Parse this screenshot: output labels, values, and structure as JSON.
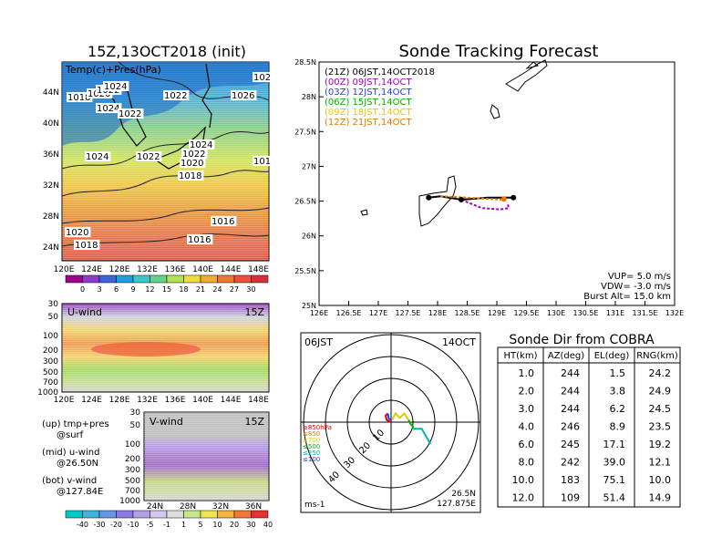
{
  "left": {
    "title": "15Z,13OCT2018 (init)",
    "map_label": "Temp(c)+Pres(hPa)",
    "lat_ticks": [
      "44N",
      "40N",
      "36N",
      "32N",
      "28N",
      "24N"
    ],
    "lon_ticks": [
      "120E",
      "124E",
      "128E",
      "132E",
      "136E",
      "140E",
      "144E",
      "148E"
    ],
    "pressure_labels": [
      "1018",
      "1020",
      "1022",
      "1024",
      "1022",
      "1024",
      "1022",
      "1026",
      "102",
      "1024",
      "1022",
      "1024",
      "1022",
      "1020",
      "1018",
      "101",
      "1016",
      "1020",
      "1018",
      "1016"
    ],
    "temp_colorbar": [
      "0",
      "3",
      "6",
      "9",
      "12",
      "15",
      "18",
      "21",
      "24",
      "27",
      "30"
    ],
    "uwind_label": "U-wind",
    "uwind_time": "15Z",
    "uwind_levels": [
      "30",
      "50",
      "100",
      "200",
      "300",
      "500",
      "700",
      "1000"
    ],
    "uwind_lon_ticks": [
      "120E",
      "124E",
      "128E",
      "132E",
      "136E",
      "140E",
      "144E",
      "148E"
    ],
    "vwind_label": "V-wind",
    "vwind_time": "15Z",
    "vwind_levels": [
      "30",
      "50",
      "100",
      "200",
      "300",
      "500",
      "700",
      "1000"
    ],
    "vwind_lat_ticks": [
      "24N",
      "28N",
      "32N",
      "36N"
    ],
    "legend_notes": [
      "(up) tmp+pres",
      "@surf",
      "(mid) u-wind",
      "@26.50N",
      "(bot) v-wind",
      "@127.84E"
    ],
    "wind_colorbar": [
      "-40",
      "-30",
      "-20",
      "-10",
      "-5",
      "-1",
      "1",
      "5",
      "10",
      "20",
      "30",
      "40"
    ]
  },
  "colors": {
    "launch_line": "#000000",
    "t00": "#a000c8",
    "t03": "#1e3cff",
    "t06": "#00b400",
    "t09": "#e6c800",
    "t12": "#e67800"
  },
  "chart_data": [
    {
      "type": "line",
      "title": "Sonde Tracking Forecast",
      "xlabel": "",
      "ylabel": "",
      "xlim": [
        126,
        132
      ],
      "ylim": [
        25,
        28.5
      ],
      "x_ticks": [
        "126E",
        "126.5E",
        "127E",
        "127.5E",
        "128E",
        "128.5E",
        "129E",
        "129.5E",
        "130E",
        "130.5E",
        "131E",
        "131.5E",
        "132E"
      ],
      "y_ticks": [
        "25N",
        "25.5N",
        "26N",
        "26.5N",
        "27N",
        "27.5N",
        "28N",
        "28.5N"
      ],
      "legend": [
        {
          "label": "(21Z)  06JST,14OCT2018",
          "color": "#000000"
        },
        {
          "label": "(00Z)  09JST,14OCT",
          "color": "#a000c8"
        },
        {
          "label": "(03Z)  12JST,14OCT",
          "color": "#1e3cff"
        },
        {
          "label": "(06Z)  15JST,14OCT",
          "color": "#00b400"
        },
        {
          "label": "(09Z)  18JST,14OCT",
          "color": "#e6c800"
        },
        {
          "label": "(12Z)  21JST,14OCT",
          "color": "#e67800"
        }
      ],
      "series": [
        {
          "name": "(21Z)  06JST,14OCT2018",
          "x": [
            129.28,
            128.85,
            128.4,
            128.05,
            127.85
          ],
          "y": [
            26.55,
            26.55,
            26.52,
            26.57,
            26.55
          ]
        },
        {
          "name": "(00Z)  09JST,14OCT",
          "x": [
            128.4,
            128.75,
            129.05,
            129.2,
            129.18
          ],
          "y": [
            26.52,
            26.4,
            26.38,
            26.4,
            26.48
          ]
        },
        {
          "name": "(12Z)  21JST,14OCT",
          "x": [
            128.05,
            128.5,
            128.9,
            129.12
          ],
          "y": [
            26.57,
            26.55,
            26.53,
            26.52
          ]
        }
      ],
      "points": [
        {
          "x": 129.28,
          "y": 26.55,
          "color": "#000000"
        },
        {
          "x": 128.4,
          "y": 26.52,
          "color": "#000000"
        },
        {
          "x": 127.85,
          "y": 26.55,
          "color": "#000000"
        },
        {
          "x": 129.12,
          "y": 26.53,
          "color": "#e67800"
        }
      ],
      "annotations": [
        "VUP=  5.0  m/s",
        "VDW= -3.0  m/s",
        "Burst Alt=  15.0  km"
      ]
    },
    {
      "type": "polar",
      "title": "",
      "top_left": "06JST",
      "top_right": "14OCT",
      "range_labels": [
        "10",
        "20",
        "30",
        "40"
      ],
      "level_legend": [
        {
          "label": "≥850hPa",
          "color": "#e60000"
        },
        {
          "label": "≤850",
          "color": "#e67800"
        },
        {
          "label": "≤700",
          "color": "#e6c800"
        },
        {
          "label": "≤500",
          "color": "#00b400"
        },
        {
          "label": "≤250",
          "color": "#00b4b4"
        },
        {
          "label": "≤100",
          "color": "#1e3cff"
        }
      ],
      "unit": "ms-1",
      "location_lat": "26.5N",
      "location_lon": "127.875E",
      "series": [
        {
          "color": "#e60000",
          "u": [
            0,
            -2,
            -2.5,
            -1.5
          ],
          "v": [
            0,
            1,
            3,
            4
          ]
        },
        {
          "color": "#1e3cff",
          "u": [
            -1.5,
            -1,
            0.5
          ],
          "v": [
            4,
            1.5,
            1
          ]
        },
        {
          "color": "#e6c800",
          "u": [
            0.5,
            2,
            4,
            6,
            8
          ],
          "v": [
            1,
            4,
            2,
            4,
            1
          ]
        },
        {
          "color": "#00b400",
          "u": [
            8,
            9,
            10,
            10
          ],
          "v": [
            1,
            -1,
            -2,
            -3
          ]
        },
        {
          "color": "#00b4b4",
          "u": [
            10,
            14,
            18
          ],
          "v": [
            -3,
            -3,
            -10
          ]
        }
      ]
    },
    {
      "type": "table",
      "title": "Sonde Dir from COBRA",
      "columns": [
        "HT(km)",
        "AZ(deg)",
        "EL(deg)",
        "RNG(km)"
      ],
      "rows": [
        [
          "1.0",
          "244",
          "1.5",
          "24.2"
        ],
        [
          "2.0",
          "244",
          "3.8",
          "24.9"
        ],
        [
          "3.0",
          "244",
          "6.2",
          "24.5"
        ],
        [
          "4.0",
          "246",
          "8.9",
          "23.5"
        ],
        [
          "6.0",
          "245",
          "17.1",
          "19.2"
        ],
        [
          "8.0",
          "242",
          "39.0",
          "12.1"
        ],
        [
          "10.0",
          "183",
          "75.1",
          "10.0"
        ],
        [
          "12.0",
          "109",
          "51.4",
          "14.9"
        ]
      ]
    }
  ]
}
